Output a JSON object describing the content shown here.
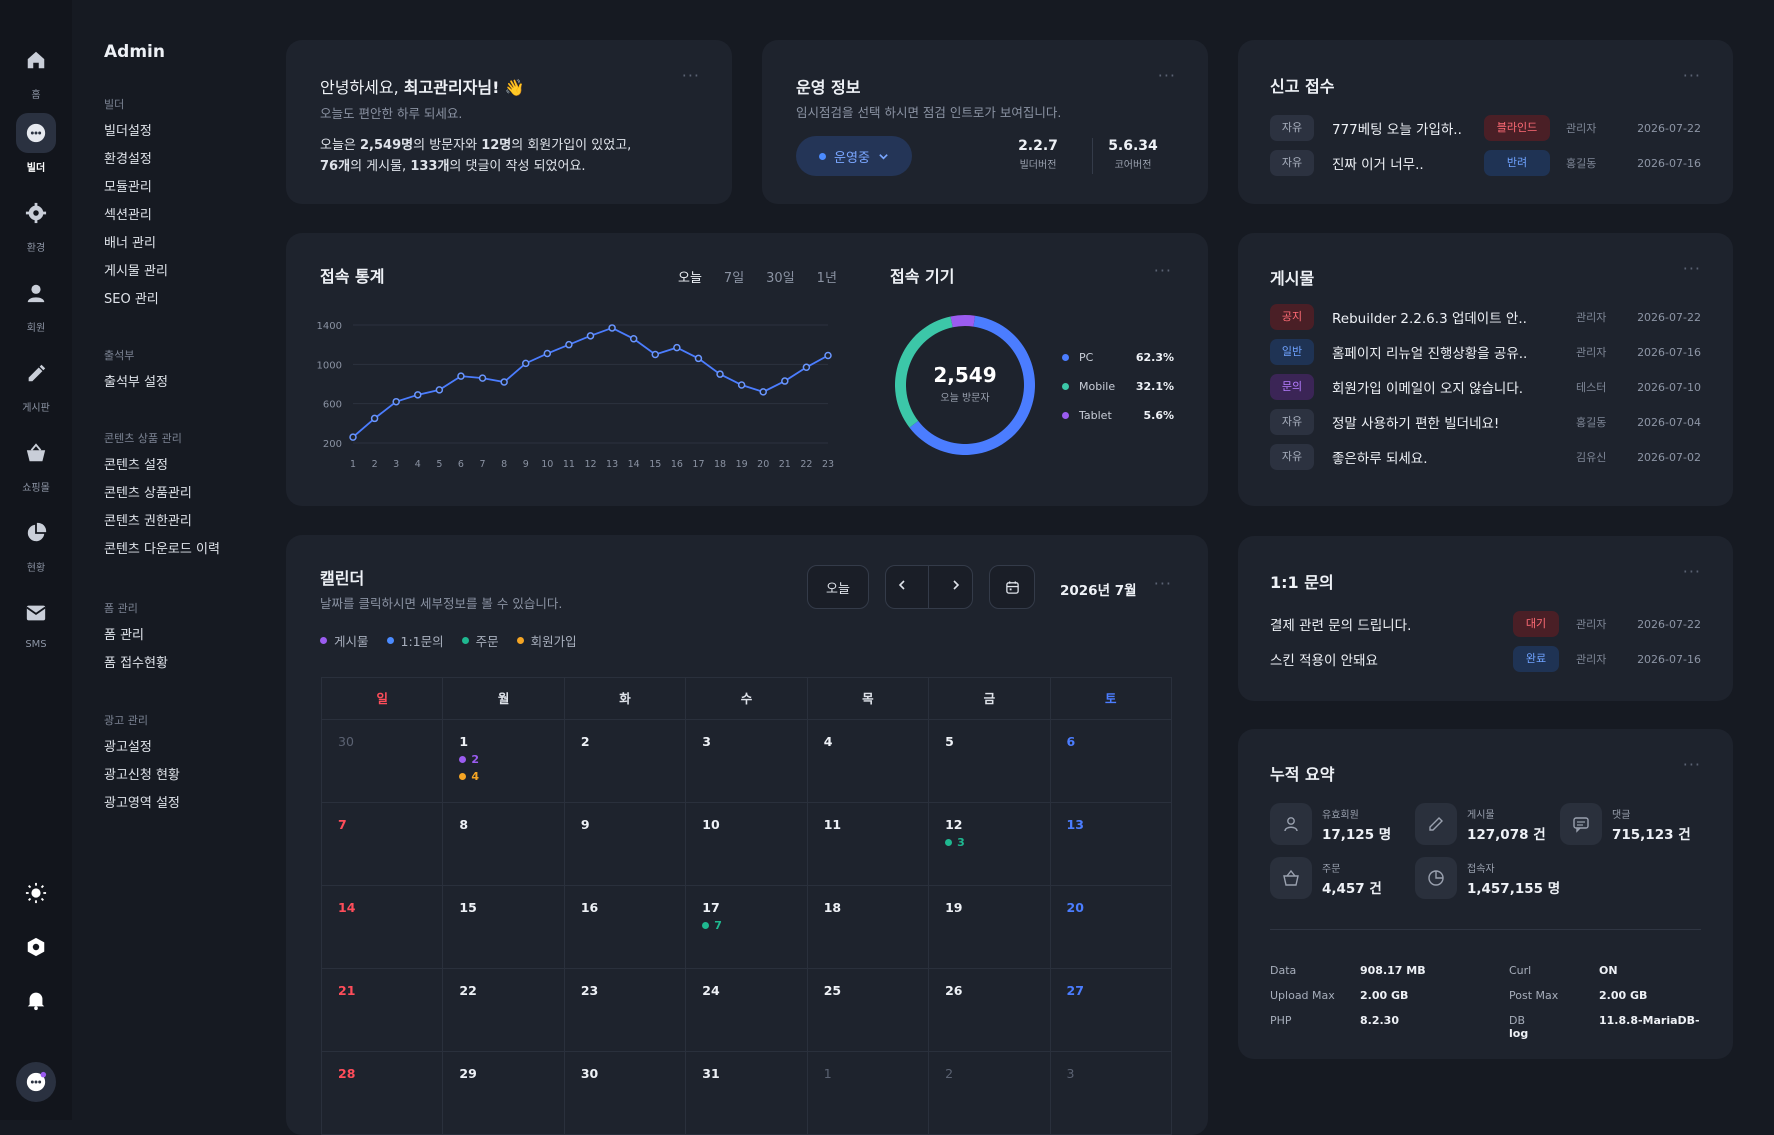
{
  "rail": {
    "items": [
      {
        "label": "홈",
        "icon": "home-icon"
      },
      {
        "label": "빌더",
        "icon": "builder-icon"
      },
      {
        "label": "환경",
        "icon": "gear-icon"
      },
      {
        "label": "회원",
        "icon": "user-icon"
      },
      {
        "label": "게시판",
        "icon": "pencil-icon"
      },
      {
        "label": "쇼핑몰",
        "icon": "basket-icon"
      },
      {
        "label": "현황",
        "icon": "pie-chart-icon"
      },
      {
        "label": "SMS",
        "icon": "mail-icon"
      }
    ]
  },
  "menu": {
    "title": "Admin",
    "groups": [
      {
        "header": "빌더",
        "items": [
          "빌더설정",
          "환경설정",
          "모듈관리",
          "섹션관리",
          "배너 관리",
          "게시물 관리",
          "SEO 관리"
        ]
      },
      {
        "header": "출석부",
        "items": [
          "출석부 설정"
        ]
      },
      {
        "header": "콘텐츠 상품 관리",
        "items": [
          "콘텐츠 설정",
          "콘텐츠 상품관리",
          "콘텐츠 권한관리",
          "콘텐츠 다운로드 이력"
        ]
      },
      {
        "header": "폼 관리",
        "items": [
          "폼 관리",
          "폼 접수현황"
        ]
      },
      {
        "header": "광고 관리",
        "items": [
          "광고설정",
          "광고신청 현황",
          "광고영역 설정"
        ]
      }
    ]
  },
  "welcome": {
    "greeting_prefix": "안녕하세요, ",
    "greeting_name": "최고관리자님!",
    "wave": "👋",
    "subtitle": "오늘도 편안한 하루 되세요.",
    "l1_a": "오늘은 ",
    "visitors": "2,549명",
    "l1_b": "의 방문자와 ",
    "signups": "12명",
    "l1_c": "의 회원가입이 있었고,",
    "posts": "76개",
    "l2_a": "의 게시물, ",
    "comments": "133개",
    "l2_b": "의 댓글이 작성 되었어요."
  },
  "ops": {
    "title": "운영 정보",
    "subtitle": "임시점검을 선택 하시면 점검 인트로가 보여집니다.",
    "status": "운영중",
    "builder_version": "2.2.7",
    "builder_label": "빌더버전",
    "core_version": "5.6.34",
    "core_label": "코어버전"
  },
  "reports": {
    "title": "신고 접수",
    "rows": [
      {
        "tag": "자유",
        "title": "777베팅 오늘 가입하..",
        "status": "블라인드",
        "who": "관리자",
        "date": "2026-07-22"
      },
      {
        "tag": "자유",
        "title": "진짜 이거 너무..",
        "status": "반려",
        "who": "홍길동",
        "date": "2026-07-16"
      }
    ]
  },
  "access": {
    "title": "접속 통계",
    "tabs": [
      "오늘",
      "7일",
      "30일",
      "1년"
    ],
    "active_tab": "오늘"
  },
  "chart_data": {
    "type": "line",
    "x": [
      1,
      2,
      3,
      4,
      5,
      6,
      7,
      8,
      9,
      10,
      11,
      12,
      13,
      14,
      15,
      16,
      17,
      18,
      19,
      20,
      21,
      22,
      23
    ],
    "series": [
      {
        "values": [
          260,
          450,
          620,
          690,
          740,
          880,
          860,
          820,
          1010,
          1110,
          1200,
          1290,
          1370,
          1260,
          1100,
          1170,
          1060,
          900,
          790,
          720,
          830,
          970,
          1090
        ]
      }
    ],
    "yticks": [
      200,
      600,
      1000,
      1400
    ],
    "ylim": [
      200,
      1400
    ],
    "grid": true
  },
  "devices": {
    "title": "접속 기기",
    "total": "2,549",
    "total_label": "오늘 방문자",
    "items": [
      {
        "name": "PC",
        "pct": "62.3%",
        "value": 62.3,
        "color": "#4b7dff"
      },
      {
        "name": "Mobile",
        "pct": "32.1%",
        "value": 32.1,
        "color": "#3cc7a8"
      },
      {
        "name": "Tablet",
        "pct": "5.6%",
        "value": 5.6,
        "color": "#9b5cf0"
      }
    ]
  },
  "posts": {
    "title": "게시물",
    "rows": [
      {
        "tag": "공지",
        "color": "red",
        "title": "Rebuilder 2.2.6.3 업데이트 안..",
        "who": "관리자",
        "date": "2026-07-22"
      },
      {
        "tag": "일반",
        "color": "blue",
        "title": "홈페이지 리뉴얼 진행상황을 공유..",
        "who": "관리자",
        "date": "2026-07-16"
      },
      {
        "tag": "문의",
        "color": "purple",
        "title": "회원가입 이메일이 오지 않습니다.",
        "who": "테스터",
        "date": "2026-07-10"
      },
      {
        "tag": "자유",
        "color": "gray",
        "title": "정말 사용하기 편한 빌더네요!",
        "who": "홍길동",
        "date": "2026-07-04"
      },
      {
        "tag": "자유",
        "color": "gray",
        "title": "좋은하루 되세요.",
        "who": "김유신",
        "date": "2026-07-02"
      }
    ]
  },
  "calendar": {
    "title": "캘린더",
    "subtitle": "날짜를 클릭하시면 세부정보를 볼 수 있습니다.",
    "today_btn": "오늘",
    "month": "2026년 7월",
    "legend": [
      {
        "label": "게시물",
        "color": "#9b5cf0"
      },
      {
        "label": "1:1문의",
        "color": "#4b8bff"
      },
      {
        "label": "주문",
        "color": "#1fb890"
      },
      {
        "label": "회원가입",
        "color": "#f5a524"
      }
    ],
    "weekdays": [
      "일",
      "월",
      "화",
      "수",
      "목",
      "금",
      "토"
    ],
    "weeks": [
      [
        {
          "d": "30",
          "dim": true
        },
        {
          "d": "1",
          "ev": [
            {
              "c": "#9b5cf0",
              "n": "2"
            },
            {
              "c": "#f5a524",
              "n": "4"
            }
          ]
        },
        {
          "d": "2"
        },
        {
          "d": "3"
        },
        {
          "d": "4"
        },
        {
          "d": "5"
        },
        {
          "d": "6"
        }
      ],
      [
        {
          "d": "7"
        },
        {
          "d": "8"
        },
        {
          "d": "9"
        },
        {
          "d": "10"
        },
        {
          "d": "11"
        },
        {
          "d": "12",
          "ev": [
            {
              "c": "#1fb890",
              "n": "3"
            }
          ]
        },
        {
          "d": "13"
        }
      ],
      [
        {
          "d": "14"
        },
        {
          "d": "15"
        },
        {
          "d": "16"
        },
        {
          "d": "17",
          "ev": [
            {
              "c": "#1fb890",
              "n": "7"
            }
          ]
        },
        {
          "d": "18"
        },
        {
          "d": "19"
        },
        {
          "d": "20"
        }
      ],
      [
        {
          "d": "21"
        },
        {
          "d": "22"
        },
        {
          "d": "23"
        },
        {
          "d": "24"
        },
        {
          "d": "25"
        },
        {
          "d": "26"
        },
        {
          "d": "27"
        }
      ],
      [
        {
          "d": "28"
        },
        {
          "d": "29"
        },
        {
          "d": "30"
        },
        {
          "d": "31"
        },
        {
          "d": "1",
          "dim": true
        },
        {
          "d": "2",
          "dim": true
        },
        {
          "d": "3",
          "dim": true
        }
      ]
    ]
  },
  "inquiry": {
    "title": "1:1 문의",
    "rows": [
      {
        "title": "결제 관련 문의 드립니다.",
        "status": "대기",
        "color": "red",
        "who": "관리자",
        "date": "2026-07-22"
      },
      {
        "title": "스킨 적용이 안돼요",
        "status": "완료",
        "color": "blue",
        "who": "관리자",
        "date": "2026-07-16"
      }
    ]
  },
  "summary": {
    "title": "누적 요약",
    "stats": [
      {
        "label": "유효회원",
        "value": "17,125 명",
        "icon": "user-icon"
      },
      {
        "label": "게시물",
        "value": "127,078 건",
        "icon": "pencil-icon"
      },
      {
        "label": "댓글",
        "value": "715,123 건",
        "icon": "comment-icon"
      },
      {
        "label": "주문",
        "value": "4,457 건",
        "icon": "basket-icon"
      },
      {
        "label": "접속자",
        "value": "1,457,155 명",
        "icon": "pie-chart-icon"
      }
    ],
    "server": [
      {
        "k": "Data",
        "v": "908.17 MB"
      },
      {
        "k": "Curl",
        "v": "ON"
      },
      {
        "k": "Upload Max",
        "v": "2.00 GB"
      },
      {
        "k": "Post Max",
        "v": "2.00 GB"
      },
      {
        "k": "PHP",
        "v": "8.2.30"
      },
      {
        "k": "DB",
        "v": "11.8.8-MariaDB-log"
      }
    ]
  }
}
